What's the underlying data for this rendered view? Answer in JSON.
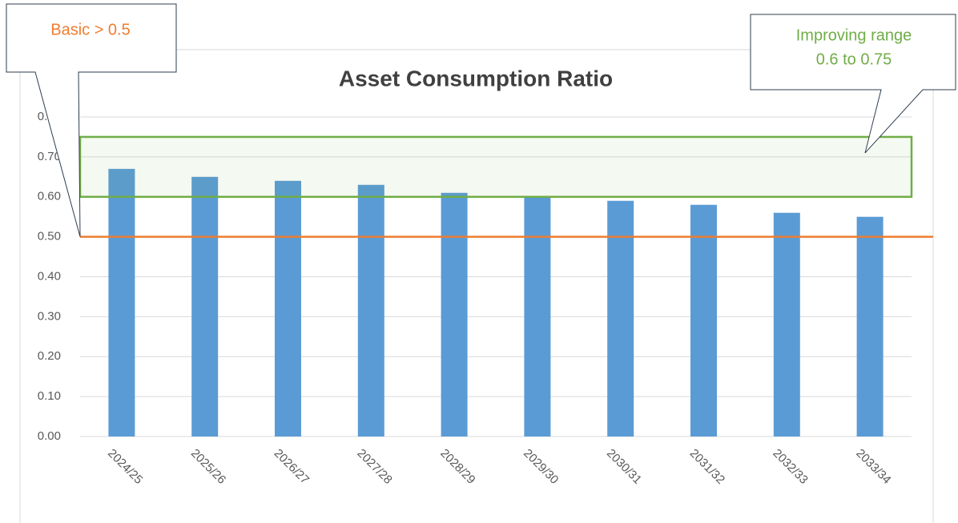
{
  "chart_data": {
    "type": "bar",
    "title": "Asset Consumption Ratio",
    "categories": [
      "2024/25",
      "2025/26",
      "2026/27",
      "2027/28",
      "2028/29",
      "2029/30",
      "2030/31",
      "2031/32",
      "2032/33",
      "2033/34"
    ],
    "values": [
      0.67,
      0.65,
      0.64,
      0.63,
      0.61,
      0.6,
      0.59,
      0.58,
      0.56,
      0.55
    ],
    "color": "#5b9bd5",
    "ylim": [
      0,
      0.8
    ],
    "yticks": [
      {
        "value": 0,
        "label": "0.00"
      },
      {
        "value": 0.1,
        "label": "0.10"
      },
      {
        "value": 0.2,
        "label": "0.20"
      },
      {
        "value": 0.3,
        "label": "0.30"
      },
      {
        "value": 0.4,
        "label": "0.40"
      },
      {
        "value": 0.5,
        "label": "0.50"
      },
      {
        "value": 0.6,
        "label": "0.60"
      },
      {
        "value": 0.7,
        "label": "0.70"
      },
      {
        "value": 0.8,
        "label": "0.80"
      }
    ],
    "grid": true,
    "basic": {
      "label": "Basic > 0.5",
      "value": 0.5,
      "color": "#ed7d31"
    },
    "improving": {
      "label_lines": [
        "Improving range",
        "0.6 to 0.75"
      ],
      "range": [
        0.6,
        0.75
      ],
      "color": "#70ad47"
    }
  }
}
